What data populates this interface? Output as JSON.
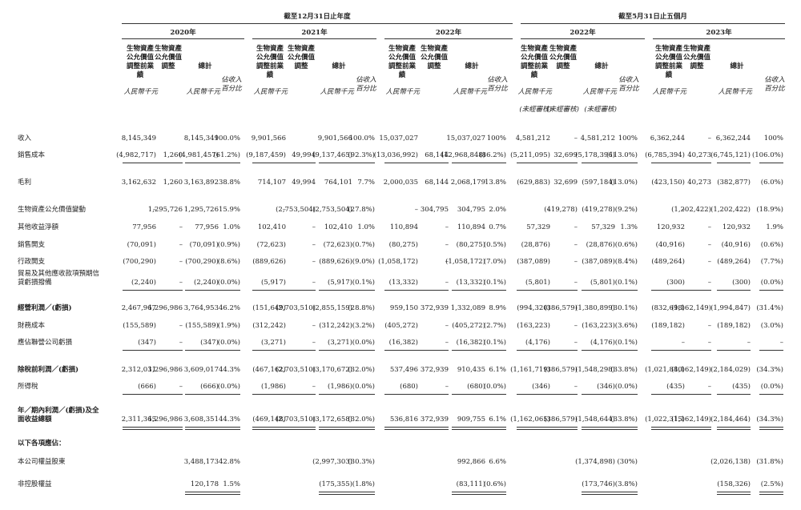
{
  "header": {
    "period_groups": [
      "截至12月31日止年度",
      "截至5月31日止五個月"
    ],
    "years": [
      "2020年",
      "2021年",
      "2022年",
      "2022年",
      "2023年"
    ],
    "columns": {
      "pre_adjustment": "生物資產公允價值調整前業績",
      "adjustment": "生物資產公允價值調整",
      "total": "總計",
      "percent": "佔收入百分比"
    },
    "unit": "人民幣千元",
    "unaudited": "(未經審核)"
  },
  "table": {
    "rows": [
      {
        "label": "收入",
        "cells": [
          "8,145,349",
          null,
          "8,145,349",
          "100.0%",
          "9,901,566",
          null,
          "9,901,566",
          "100.0%",
          "15,037,027",
          null,
          "15,037,027",
          "100%",
          "4,581,212",
          "–",
          "4,581,212",
          "100%",
          "6,362,244",
          "–",
          "6,362,244",
          "100%"
        ]
      },
      {
        "label": "銷售成本",
        "cells": [
          "(4,982,717)",
          "1,260",
          "(4,981,457)",
          "(61.2%)",
          "(9,187,459)",
          "49,994",
          "(9,137,465)",
          "(92.3%)",
          "(13,036,992)",
          "68,144",
          "(12,968,848)",
          "(86.2%)",
          "(5,211,095)",
          "32,699",
          "(5,178,396)",
          "(113.0%)",
          "(6,785,394)",
          "40,273",
          "(6,745,121)",
          "(106.0%)"
        ]
      },
      {
        "label": "毛利",
        "cells": [
          "3,162,632",
          "1,260",
          "3,163,892",
          "38.8%",
          "714,107",
          "49,994",
          "764,101",
          "7.7%",
          "2,000,035",
          "68,144",
          "2,068,179",
          "13.8%",
          "(629,883)",
          "32,699",
          "(597,184)",
          "(13.0%)",
          "(423,150)",
          "40,273",
          "(382,877)",
          "(6.0%)"
        ]
      },
      {
        "label": "生物資產公允價值變動",
        "cells": [
          "–",
          "1,295,726",
          "1,295,726",
          "15.9%",
          "–",
          "(2,753,504)",
          "(2,753,504)",
          "(27.8%)",
          "–",
          "304,795",
          "304,795",
          "2.0%",
          "–",
          "(419,278)",
          "(419,278)",
          "(9.2%)",
          "–",
          "(1,202,422)",
          "(1,202,422)",
          "(18.9%)"
        ]
      },
      {
        "label": "其他收益淨額",
        "cells": [
          "77,956",
          "–",
          "77,956",
          "1.0%",
          "102,410",
          "–",
          "102,410",
          "1.0%",
          "110,894",
          "–",
          "110,894",
          "0.7%",
          "57,329",
          "–",
          "57,329",
          "1.3%",
          "120,932",
          "–",
          "120,932",
          "1.9%"
        ]
      },
      {
        "label": "銷售開支",
        "cells": [
          "(70,091)",
          "–",
          "(70,091)",
          "(0.9%)",
          "(72,623)",
          "–",
          "(72,623)",
          "(0.7%)",
          "(80,275)",
          "–",
          "(80,275)",
          "(0.5%)",
          "(28,876)",
          "–",
          "(28,876)",
          "(0.6%)",
          "(40,916)",
          "–",
          "(40,916)",
          "(0.6%)"
        ]
      },
      {
        "label": "行政開支",
        "cells": [
          "(700,290)",
          "–",
          "(700,290)",
          "(8.6%)",
          "(889,626)",
          "–",
          "(889,626)",
          "(9.0%)",
          "(1,058,172)",
          "–",
          "(1,058,172)",
          "(7.0%)",
          "(387,089)",
          "–",
          "(387,089)",
          "(8.4%)",
          "(489,264)",
          "–",
          "(489,264)",
          "(7.7%)"
        ]
      },
      {
        "label": "貿易及其他應收款項預期信貸虧損撥備",
        "cells": [
          "(2,240)",
          "–",
          "(2,240)",
          "(0.0%)",
          "(5,917)",
          "–",
          "(5,917)",
          "(0.1%)",
          "(13,332)",
          "–",
          "(13,332)",
          "(0.1%)",
          "(5,801)",
          "–",
          "(5,801)",
          "(0.1%)",
          "(300)",
          "–",
          "(300)",
          "(0.0%)"
        ]
      },
      {
        "label": "經營利潤／(虧損)",
        "cells": [
          "2,467,967",
          "1,296,986",
          "3,764,953",
          "46.2%",
          "(151,649)",
          "(2,703,510)",
          "(2,855,159)",
          "(28.8%)",
          "959,150",
          "372,939",
          "1,332,089",
          "8.9%",
          "(994,320)",
          "(386,579)",
          "(1,380,899)",
          "(30.1%)",
          "(832,698)",
          "(1,162,149)",
          "(1,994,847)",
          "(31.4%)"
        ]
      },
      {
        "label": "財務成本",
        "cells": [
          "(155,589)",
          "–",
          "(155,589)",
          "(1.9%)",
          "(312,242)",
          "–",
          "(312,242)",
          "(3.2%)",
          "(405,272)",
          "–",
          "(405,272)",
          "(2.7%)",
          "(163,223)",
          "–",
          "(163,223)",
          "(3.6%)",
          "(189,182)",
          "–",
          "(189,182)",
          "(3.0%)"
        ]
      },
      {
        "label": "應佔聯營公司虧損",
        "cells": [
          "(347)",
          "–",
          "(347)",
          "(0.0%)",
          "(3,271)",
          "–",
          "(3,271)",
          "(0.0%)",
          "(16,382)",
          "–",
          "(16,382)",
          "(0.1%)",
          "(4,176)",
          "–",
          "(4,176)",
          "(0.1%)",
          "–",
          "–",
          "–",
          "–"
        ]
      },
      {
        "label": "除稅前利潤／(虧損)",
        "cells": [
          "2,312,031",
          "1,296,986",
          "3,609,017",
          "44.3%",
          "(467,162)",
          "(2,703,510)",
          "(3,170,672)",
          "(32.0%)",
          "537,496",
          "372,939",
          "910,435",
          "6.1%",
          "(1,161,719)",
          "(386,579)",
          "(1,548,298)",
          "(33.8%)",
          "(1,021,880)",
          "(1,162,149)",
          "(2,184,029)",
          "(34.3%)"
        ]
      },
      {
        "label": "所得稅",
        "cells": [
          "(666)",
          "–",
          "(666)",
          "(0.0%)",
          "(1,986)",
          "–",
          "(1,986)",
          "(0.0%)",
          "(680)",
          "–",
          "(680)",
          "(0.0%)",
          "(346)",
          "–",
          "(346)",
          "(0.0%)",
          "(435)",
          "–",
          "(435)",
          "(0.0%)"
        ]
      },
      {
        "label": "年／期內利潤／(虧損)及全面收益總額",
        "cells": [
          "2,311,365",
          "1,296,986",
          "3,608,351",
          "44.3%",
          "(469,148)",
          "(2,703,510)",
          "(3,172,658)",
          "(32.0%)",
          "536,816",
          "372,939",
          "909,755",
          "6.1%",
          "(1,162,065)",
          "(386,579)",
          "(1,548,644)",
          "(33.8%)",
          "(1,022,315)",
          "(1,162,149)",
          "(2,184,464)",
          "(34.3%)"
        ]
      },
      {
        "label": "以下各項應佔：",
        "cells": [
          null,
          null,
          null,
          null,
          null,
          null,
          null,
          null,
          null,
          null,
          null,
          null,
          null,
          null,
          null,
          null,
          null,
          null,
          null,
          null
        ]
      },
      {
        "label": "本公司權益股東",
        "cells": [
          null,
          null,
          "3,488,173",
          "42.8%",
          null,
          null,
          "(2,997,303)",
          "(30.3%)",
          null,
          null,
          "992,866",
          "6.6%",
          null,
          null,
          "(1,374,898)",
          "(30%)",
          null,
          null,
          "(2,026,138)",
          "(31.8%)"
        ]
      },
      {
        "label": "非控股權益",
        "cells": [
          null,
          null,
          "120,178",
          "1.5%",
          null,
          null,
          "(175,355)",
          "(1.8%)",
          null,
          null,
          "(83,111)",
          "(0.6%)",
          null,
          null,
          "(173,746)",
          "(3.8%)",
          null,
          null,
          "(158,326)",
          "(2.5%)"
        ]
      }
    ]
  }
}
